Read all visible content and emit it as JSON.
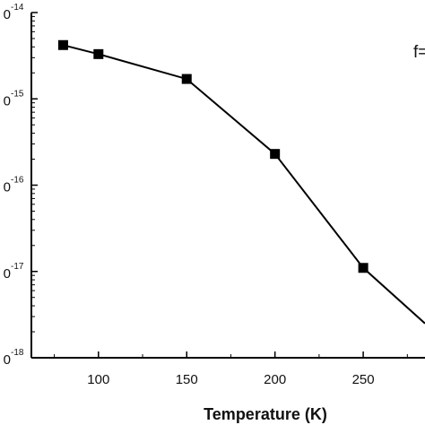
{
  "chart_data": {
    "type": "line",
    "xlabel": "Temperature (K)",
    "ylabel": "",
    "xlim": [
      62,
      285
    ],
    "ylim_log10": [
      -18,
      -14
    ],
    "y_scale": "log",
    "x_ticks": [
      100,
      150,
      200,
      250
    ],
    "x_tick_labels": [
      "100",
      "150",
      "200",
      "250"
    ],
    "y_tick_exponents": [
      "-14",
      "-15",
      "-16",
      "-17",
      "-18"
    ],
    "y_tick_prefix": "0",
    "annotation": "f=",
    "marker": "square",
    "series": [
      {
        "x": [
          80,
          100,
          150,
          200,
          250,
          285
        ],
        "y": [
          4.2e-15,
          3.3e-15,
          1.7e-15,
          2.3e-16,
          1.1e-17,
          2.5e-18
        ]
      }
    ],
    "colors": {
      "line": "#000000",
      "marker": "#000000",
      "axis": "#000000"
    }
  }
}
